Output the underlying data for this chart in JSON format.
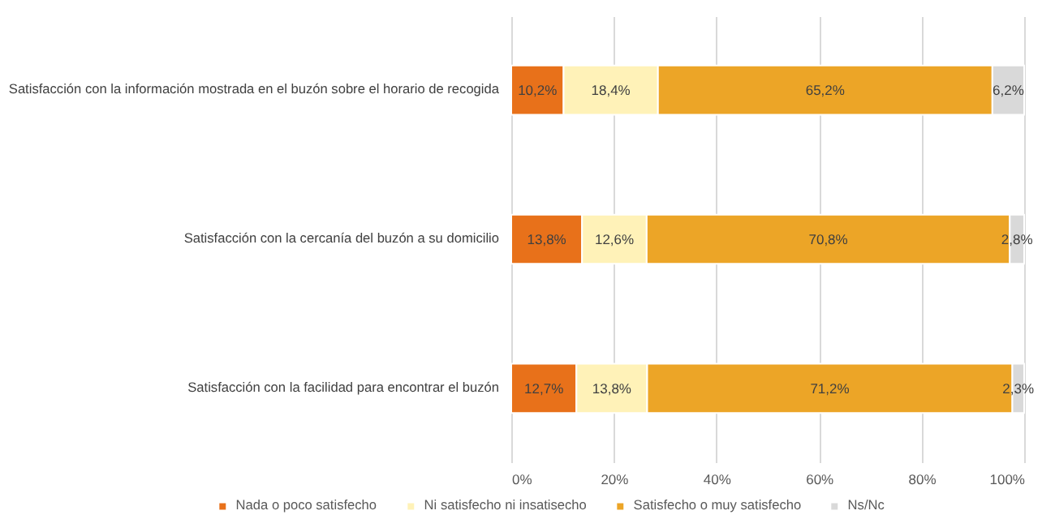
{
  "chart_data": {
    "type": "bar",
    "orientation": "horizontal",
    "stacked": true,
    "categories": [
      "Satisfacción con la información mostrada en el buzón sobre el horario de recogida",
      "Satisfacción con la cercanía del buzón a su domicilio",
      "Satisfacción con la facilidad para encontrar el buzón"
    ],
    "series": [
      {
        "name": "Nada o poco satisfecho",
        "color": "#e8711a",
        "values": [
          10.2,
          13.8,
          12.7
        ],
        "value_labels": [
          "10,2%",
          "13,8%",
          "12,7%"
        ]
      },
      {
        "name": "Ni satisfecho ni insatisecho",
        "color": "#fff2b8",
        "values": [
          18.4,
          12.6,
          13.8
        ],
        "value_labels": [
          "18,4%",
          "12,6%",
          "13,8%"
        ]
      },
      {
        "name": "Satisfecho o muy satisfecho",
        "color": "#eca527",
        "values": [
          65.2,
          70.8,
          71.2
        ],
        "value_labels": [
          "65,2%",
          "70,8%",
          "71,2%"
        ]
      },
      {
        "name": "Ns/Nc",
        "color": "#d9d9d9",
        "values": [
          6.2,
          2.8,
          2.3
        ],
        "value_labels": [
          "6,2%",
          "2,8%",
          "2,3%"
        ]
      }
    ],
    "xlim": [
      0,
      100
    ],
    "xticks": [
      {
        "value": 0,
        "label": "0%"
      },
      {
        "value": 20,
        "label": "20%"
      },
      {
        "value": 40,
        "label": "40%"
      },
      {
        "value": 60,
        "label": "60%"
      },
      {
        "value": 80,
        "label": "80%"
      },
      {
        "value": 100,
        "label": "100%"
      }
    ],
    "grid": "x",
    "legend": "bottom"
  }
}
